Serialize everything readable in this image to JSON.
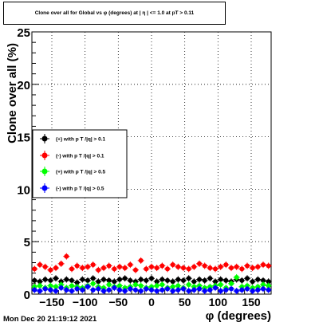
{
  "title": "Clone  over all for Global vs φ (degrees) at | η | <= 1.0 at pT > 0.11",
  "timestamp": "Mon Dec 20 21:19:12 2021",
  "chart_data": {
    "type": "scatter",
    "xlabel": "φ (degrees)",
    "ylabel": "Clone  over all (%)",
    "xlim": [
      -180,
      180
    ],
    "ylim": [
      0,
      25
    ],
    "x_ticks": [
      -150,
      -100,
      -50,
      0,
      50,
      100,
      150
    ],
    "x_tick_labels": [
      "−150",
      "−100",
      "−50",
      "0",
      "50",
      "100",
      "150"
    ],
    "y_ticks": [
      0,
      5,
      10,
      15,
      20,
      25
    ],
    "y_tick_labels": [
      "0",
      "5",
      "10",
      "15",
      "20",
      "25"
    ],
    "grid": true,
    "legend_position": "left-middle",
    "x": [
      -176,
      -168,
      -160,
      -152,
      -144,
      -136,
      -128,
      -120,
      -112,
      -104,
      -96,
      -88,
      -80,
      -72,
      -64,
      -56,
      -48,
      -40,
      -32,
      -24,
      -16,
      -8,
      0,
      8,
      16,
      24,
      32,
      40,
      48,
      56,
      64,
      72,
      80,
      88,
      96,
      104,
      112,
      120,
      128,
      136,
      144,
      152,
      160,
      168,
      176
    ],
    "series": [
      {
        "name": "(+) with p T /|q| > 0.1",
        "color": "#000000",
        "values": [
          1.3,
          1.2,
          1.4,
          1.3,
          1.5,
          1.2,
          1.4,
          1.3,
          1.1,
          1.4,
          1.3,
          1.5,
          1.2,
          1.4,
          1.3,
          1.2,
          1.4,
          1.5,
          1.3,
          1.2,
          1.4,
          1.3,
          1.5,
          1.2,
          1.4,
          1.3,
          1.2,
          1.4,
          1.3,
          1.5,
          1.2,
          1.4,
          1.3,
          1.5,
          1.2,
          1.4,
          1.3,
          1.2,
          1.4,
          1.3,
          1.5,
          1.2,
          1.4,
          1.3,
          1.2
        ]
      },
      {
        "name": "(-) with p T /|q| > 0.1",
        "color": "#ff0000",
        "values": [
          2.4,
          2.8,
          2.6,
          2.3,
          2.5,
          2.9,
          3.6,
          2.4,
          2.7,
          2.5,
          2.6,
          2.8,
          2.3,
          2.5,
          2.7,
          2.4,
          2.6,
          2.5,
          2.8,
          2.3,
          3.2,
          2.4,
          2.6,
          2.5,
          2.7,
          2.4,
          2.8,
          2.6,
          2.5,
          2.4,
          2.6,
          2.9,
          2.7,
          2.5,
          2.4,
          2.6,
          2.8,
          2.5,
          2.6,
          2.4,
          2.7,
          2.5,
          2.6,
          2.8,
          2.7
        ]
      },
      {
        "name": "(+) with p T /|q| > 0.5",
        "color": "#00ff00",
        "values": [
          0.7,
          0.8,
          0.6,
          0.8,
          0.7,
          0.9,
          0.6,
          0.8,
          0.7,
          0.6,
          0.8,
          1.0,
          0.7,
          0.6,
          0.9,
          0.7,
          0.8,
          0.6,
          0.7,
          0.9,
          0.8,
          0.6,
          0.7,
          0.8,
          0.9,
          0.6,
          0.7,
          0.8,
          0.6,
          0.9,
          0.7,
          0.8,
          0.6,
          0.7,
          0.8,
          0.9,
          0.6,
          1.0,
          1.6,
          0.7,
          0.8,
          0.6,
          0.7,
          0.9,
          0.8
        ]
      },
      {
        "name": "(-) with p T /|q| > 0.5",
        "color": "#0000ff",
        "values": [
          0.4,
          0.3,
          0.5,
          0.4,
          0.3,
          0.6,
          0.4,
          0.3,
          0.5,
          0.4,
          0.7,
          0.4,
          0.5,
          0.3,
          0.4,
          0.6,
          0.4,
          0.3,
          0.5,
          0.4,
          0.3,
          0.5,
          0.4,
          0.3,
          0.4,
          0.5,
          0.3,
          0.4,
          0.5,
          0.3,
          0.4,
          0.5,
          0.3,
          0.4,
          0.6,
          0.3,
          0.4,
          0.5,
          0.3,
          0.4,
          0.5,
          0.3,
          0.4,
          0.5,
          0.4
        ]
      }
    ]
  }
}
